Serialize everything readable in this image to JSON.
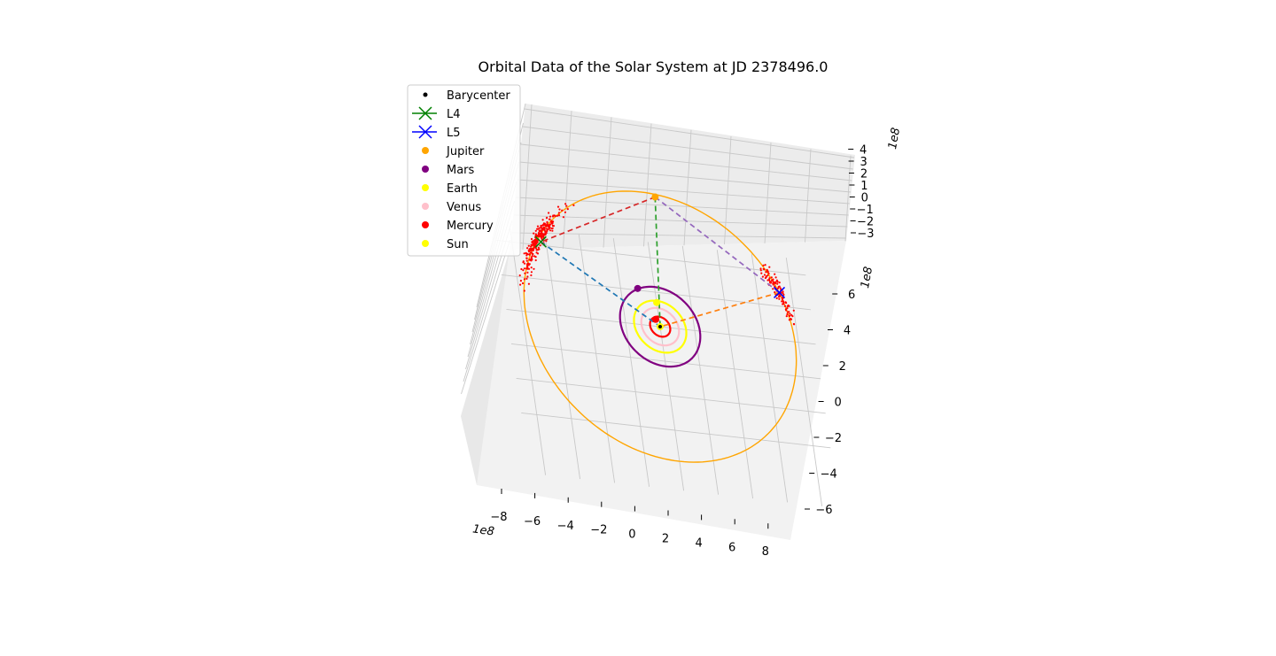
{
  "chart_data": {
    "type": "scatter",
    "projection": "3d",
    "title": "Orbital Data of the Solar System at JD 2378496.0",
    "x_axis": {
      "scale_label": "1e8",
      "ticks": [
        "−8",
        "−6",
        "−4",
        "−2",
        "0",
        "2",
        "4",
        "6",
        "8"
      ],
      "range": [
        -9,
        9
      ]
    },
    "y_axis": {
      "scale_label": "1e8",
      "ticks": [
        "−6",
        "−4",
        "−2",
        "0",
        "2",
        "4",
        "6"
      ],
      "range": [
        -7,
        7
      ]
    },
    "z_axis": {
      "scale_label": "1e8",
      "ticks": [
        "−3",
        "−2",
        "−1",
        "0",
        "1",
        "2",
        "3",
        "4"
      ],
      "range": [
        -3.5,
        4
      ]
    },
    "grid": true,
    "legend_position": "upper-left",
    "legend": [
      {
        "label": "Barycenter",
        "marker": "dot",
        "color": "#000000"
      },
      {
        "label": "L4",
        "marker": "x-line",
        "color": "#008000"
      },
      {
        "label": "L5",
        "marker": "x-line",
        "color": "#0000ff"
      },
      {
        "label": "Jupiter",
        "marker": "dot",
        "color": "#ffa500"
      },
      {
        "label": "Mars",
        "marker": "dot",
        "color": "#800080"
      },
      {
        "label": "Earth",
        "marker": "dot",
        "color": "#ffff00"
      },
      {
        "label": "Venus",
        "marker": "dot",
        "color": "#ffc0cb"
      },
      {
        "label": "Mercury",
        "marker": "dot",
        "color": "#ff0000"
      },
      {
        "label": "Sun",
        "marker": "dot",
        "color": "#ffff00"
      }
    ],
    "orbits": [
      {
        "body": "Jupiter",
        "color": "#ffa500",
        "semi_major_x": 7.8,
        "semi_major_y": 7.8
      },
      {
        "body": "Mars",
        "color": "#800080",
        "semi_major_x": 2.3,
        "semi_major_y": 2.3
      },
      {
        "body": "Earth",
        "color": "#ffff00",
        "semi_major_x": 1.5,
        "semi_major_y": 1.5
      },
      {
        "body": "Venus",
        "color": "#ffc0cb",
        "semi_major_x": 1.08,
        "semi_major_y": 1.08
      },
      {
        "body": "Mercury",
        "color": "#ff0000",
        "semi_major_x": 0.58,
        "semi_major_y": 0.58
      }
    ],
    "bodies": [
      {
        "name": "Jupiter",
        "x": 0.8,
        "y": 7.6,
        "color": "#ffa500"
      },
      {
        "name": "Mars",
        "x": -1.0,
        "y": 2.1,
        "color": "#800080"
      },
      {
        "name": "Earth",
        "x": 0.0,
        "y": 1.4,
        "color": "#ffff00"
      },
      {
        "name": "Mercury",
        "x": -0.2,
        "y": 0.4,
        "color": "#ff0000"
      },
      {
        "name": "Sun",
        "x": 0.0,
        "y": 0.0,
        "color": "#ffff00"
      },
      {
        "name": "Barycenter",
        "x": 0.0,
        "y": 0.0,
        "color": "#000000"
      }
    ],
    "lagrange_points": [
      {
        "name": "L4",
        "x": -6.3,
        "y": 4.2,
        "color": "#008000"
      },
      {
        "name": "L5",
        "x": 7.3,
        "y": 2.8,
        "color": "#0000ff"
      }
    ],
    "connector_lines": [
      {
        "from": "Jupiter",
        "to": "Sun",
        "color": "#2ca02c"
      },
      {
        "from": "L4",
        "to": "Sun",
        "color": "#1f77b4"
      },
      {
        "from": "L5",
        "to": "Sun",
        "color": "#ff7f0e"
      },
      {
        "from": "Jupiter",
        "to": "L4",
        "color": "#d62728"
      },
      {
        "from": "Jupiter",
        "to": "L5",
        "color": "#9467bd"
      }
    ],
    "asteroid_clusters": [
      {
        "name": "L4 trojans",
        "color": "#ff0000",
        "center_angle_deg": 146,
        "angle_spread_deg": 28,
        "radius": 7.8,
        "count": 260
      },
      {
        "name": "L5 trojans",
        "color": "#ff0000",
        "center_angle_deg": 22,
        "angle_spread_deg": 18,
        "radius": 7.8,
        "count": 110
      }
    ]
  }
}
